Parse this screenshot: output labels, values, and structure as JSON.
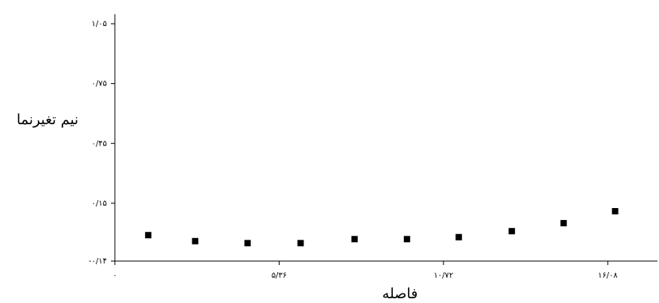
{
  "chart_data": {
    "type": "scatter",
    "x_label": "فاصله",
    "y_label": "نیم تغیرنما",
    "x": [
      1.09,
      2.62,
      4.33,
      6.06,
      7.82,
      9.53,
      11.22,
      12.95,
      14.64,
      16.32
    ],
    "values": [
      -0.01,
      -0.04,
      -0.05,
      -0.05,
      -0.03,
      -0.03,
      -0.02,
      0.01,
      0.05,
      0.11
    ],
    "color": "#000000",
    "xlim": [
      0,
      17.7
    ],
    "ylim": [
      -0.14,
      1.05
    ],
    "xticks": [
      {
        "value": 0,
        "label": "٠"
      },
      {
        "value": 5.36,
        "label": "۵/۳۶"
      },
      {
        "value": 10.72,
        "label": "۱۰/۷۲"
      },
      {
        "value": 16.08,
        "label": "۱۶/۰۸"
      }
    ],
    "yticks": [
      {
        "value": -0.14,
        "label": "-۰/۱۴"
      },
      {
        "value": 0.15,
        "label": "۰/۱۵"
      },
      {
        "value": 0.45,
        "label": "۰/۴۵"
      },
      {
        "value": 0.75,
        "label": "۰/۷۵"
      },
      {
        "value": 1.05,
        "label": "۱/۰۵"
      }
    ]
  }
}
